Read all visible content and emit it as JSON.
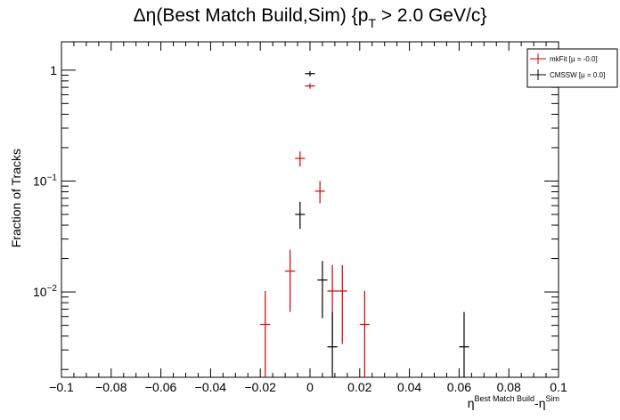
{
  "chart_data": {
    "type": "scatter",
    "title": {
      "main": "Δη(Best Match Build,Sim) {p",
      "sub": "T",
      "tail": " > 2.0 GeV/c}"
    },
    "xlabel": {
      "base": "η",
      "sup1": "Best Match Build",
      "mid": "-η",
      "sup2": "Sim"
    },
    "ylabel": "Fraction of Tracks",
    "xlim": [
      -0.1,
      0.1
    ],
    "ylim": [
      0.0017,
      1.8
    ],
    "yscale": "log",
    "grid": false,
    "legend_position": "top-right",
    "x_ticks": [
      {
        "v": -0.1,
        "label": "−0.1"
      },
      {
        "v": -0.08,
        "label": "−0.08"
      },
      {
        "v": -0.06,
        "label": "−0.06"
      },
      {
        "v": -0.04,
        "label": "−0.04"
      },
      {
        "v": -0.02,
        "label": "−0.02"
      },
      {
        "v": 0,
        "label": "0"
      },
      {
        "v": 0.02,
        "label": "0.02"
      },
      {
        "v": 0.04,
        "label": "0.04"
      },
      {
        "v": 0.06,
        "label": "0.06"
      },
      {
        "v": 0.08,
        "label": "0.08"
      },
      {
        "v": 0.1,
        "label": "0.1"
      }
    ],
    "y_ticks": [
      {
        "v": 0.01,
        "base": "10",
        "exp": "−2"
      },
      {
        "v": 0.1,
        "base": "10",
        "exp": "−1"
      },
      {
        "v": 1,
        "base": "1",
        "exp": ""
      }
    ],
    "bin_half_width": 0.002,
    "series": [
      {
        "name": "mkFit  [μ = -0.0]",
        "color": "#d40000",
        "points": [
          {
            "x": -0.018,
            "y": 0.0051,
            "ylo": 0.0017,
            "yhi": 0.0102
          },
          {
            "x": -0.008,
            "y": 0.0154,
            "ylo": 0.0066,
            "yhi": 0.024
          },
          {
            "x": -0.004,
            "y": 0.16,
            "ylo": 0.135,
            "yhi": 0.185
          },
          {
            "x": 0.0,
            "y": 0.72,
            "ylo": 0.68,
            "yhi": 0.76
          },
          {
            "x": 0.004,
            "y": 0.081,
            "ylo": 0.063,
            "yhi": 0.1
          },
          {
            "x": 0.009,
            "y": 0.0102,
            "ylo": 0.0034,
            "yhi": 0.0175
          },
          {
            "x": 0.013,
            "y": 0.0102,
            "ylo": 0.0034,
            "yhi": 0.0175
          },
          {
            "x": 0.022,
            "y": 0.0051,
            "ylo": 0.0017,
            "yhi": 0.0102
          }
        ]
      },
      {
        "name": "CMSSW  [μ =  0.0]",
        "color": "#000000",
        "points": [
          {
            "x": -0.004,
            "y": 0.05,
            "ylo": 0.037,
            "yhi": 0.065
          },
          {
            "x": 0.0,
            "y": 0.93,
            "ylo": 0.88,
            "yhi": 0.98
          },
          {
            "x": 0.005,
            "y": 0.0128,
            "ylo": 0.0058,
            "yhi": 0.019
          },
          {
            "x": 0.009,
            "y": 0.0032,
            "ylo": 0.0017,
            "yhi": 0.0066
          },
          {
            "x": 0.062,
            "y": 0.0032,
            "ylo": 0.0017,
            "yhi": 0.0066
          }
        ]
      }
    ]
  }
}
